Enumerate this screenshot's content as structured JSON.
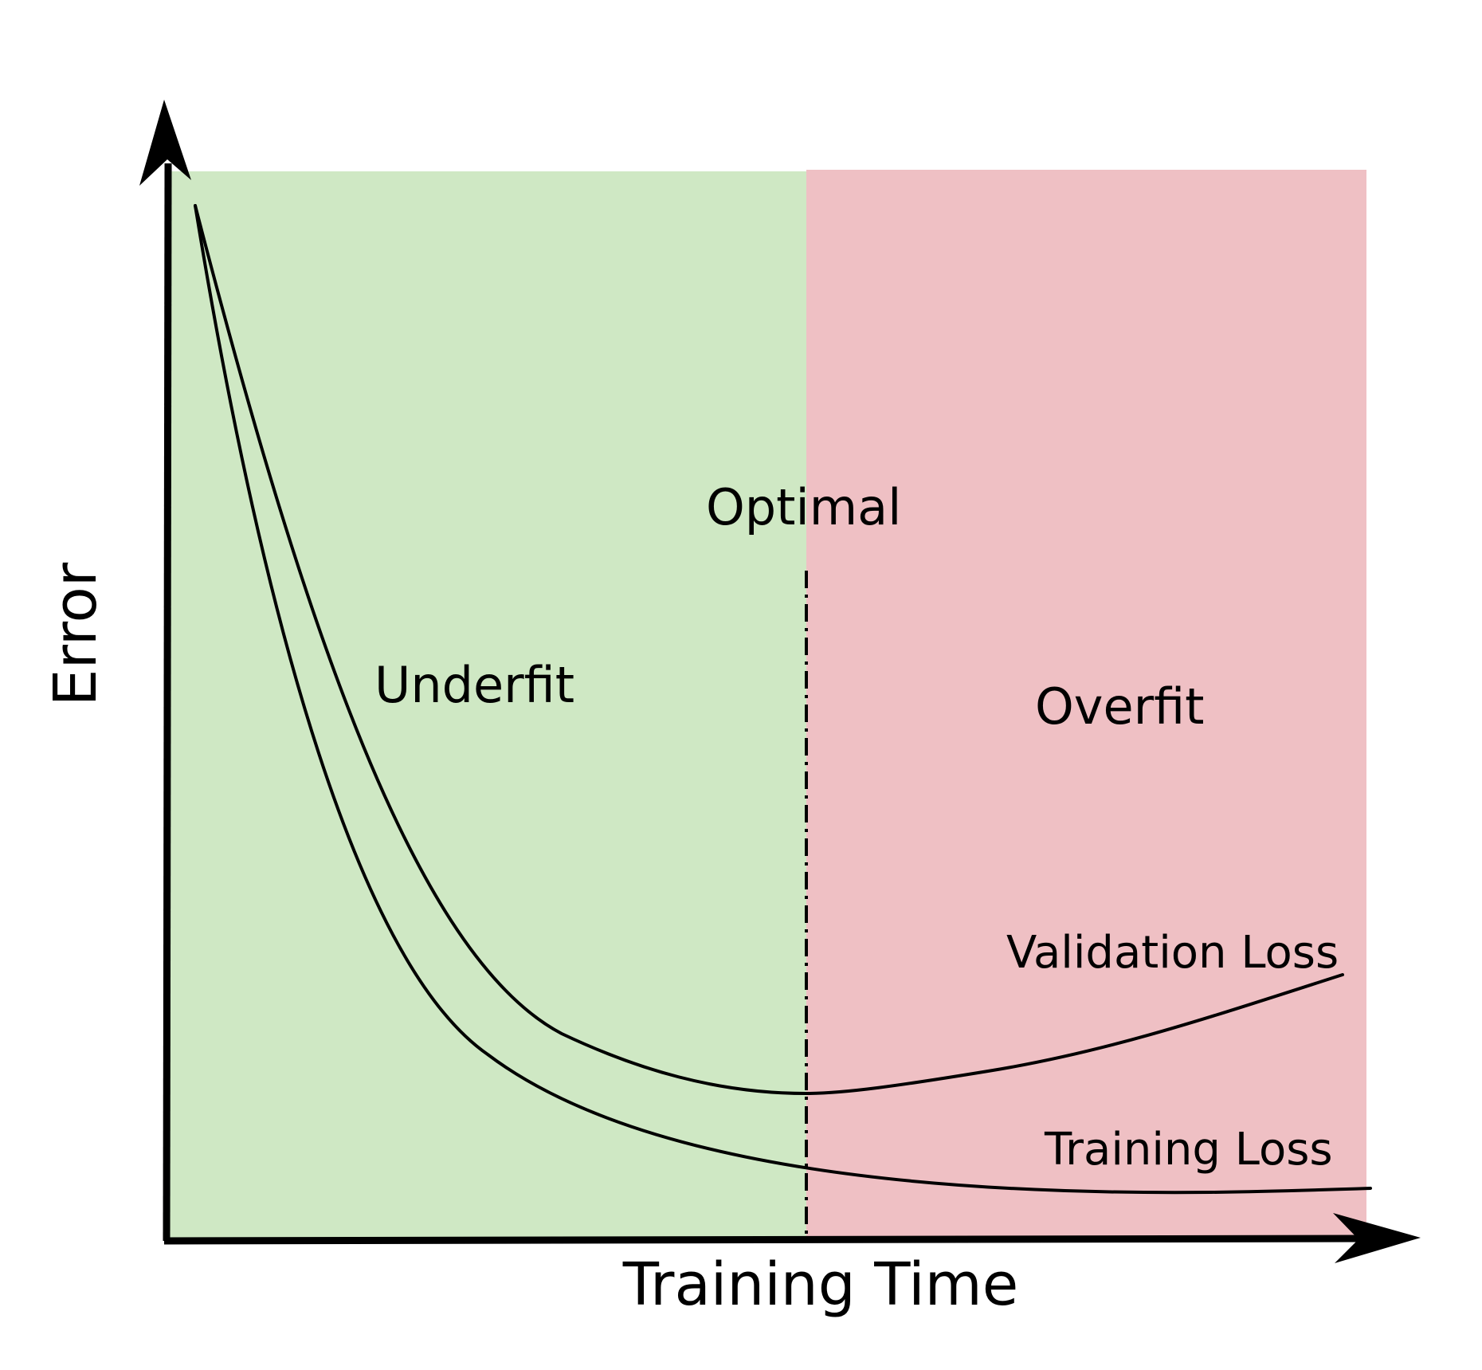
{
  "labels": {
    "y_axis": "Error",
    "x_axis": "Training Time",
    "underfit": "Underfit",
    "optimal": "Optimal",
    "overfit": "Overfit",
    "validation_loss": "Validation Loss",
    "training_loss": "Training Loss"
  },
  "colors": {
    "underfit_region": "#cfe8c4",
    "overfit_region": "#efc0c4",
    "axis": "#000000",
    "curve": "#000000"
  },
  "markers": {
    "optimal_boundary": "dash-dot vertical line"
  }
}
